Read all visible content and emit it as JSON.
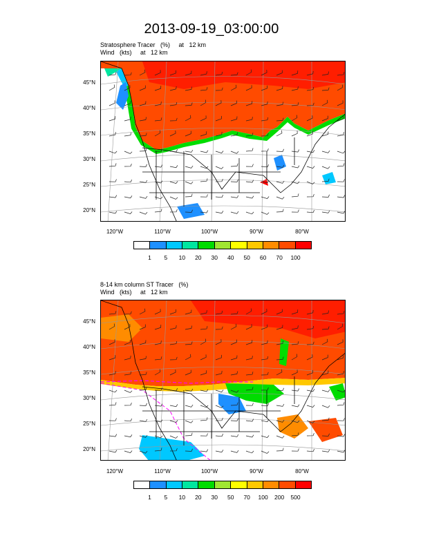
{
  "title": "2013-09-19_03:00:00",
  "panels": [
    {
      "label_line1": "Stratosphere Tracer   (%)     at   12 km",
      "label_line2": "Wind   (kts)     at   12 km",
      "lat_labels": [
        "45°N",
        "40°N",
        "35°N",
        "30°N",
        "25°N",
        "20°N"
      ],
      "lon_labels": [
        "120°W",
        "110°W",
        "100°W",
        "90°W",
        "80°W"
      ],
      "colorbar_labels": [
        "1",
        "5",
        "10",
        "20",
        "30",
        "40",
        "50",
        "60",
        "70",
        "100"
      ]
    },
    {
      "label_line1": "8-14 km column ST Tracer   (%)",
      "label_line2": "Wind   (kts)     at   12 km",
      "lat_labels": [
        "45°N",
        "40°N",
        "35°N",
        "30°N",
        "25°N",
        "20°N"
      ],
      "lon_labels": [
        "120°W",
        "110°W",
        "100°W",
        "90°W",
        "80°W"
      ],
      "colorbar_labels": [
        "1",
        "5",
        "10",
        "20",
        "30",
        "50",
        "70",
        "100",
        "200",
        "500"
      ]
    }
  ],
  "colorbar_colors": [
    "#ffffff",
    "#1e90ff",
    "#00c8ff",
    "#00e6a0",
    "#00dc00",
    "#a0e632",
    "#ffff00",
    "#ffc800",
    "#ff8c00",
    "#ff4b00",
    "#ff0000"
  ]
}
